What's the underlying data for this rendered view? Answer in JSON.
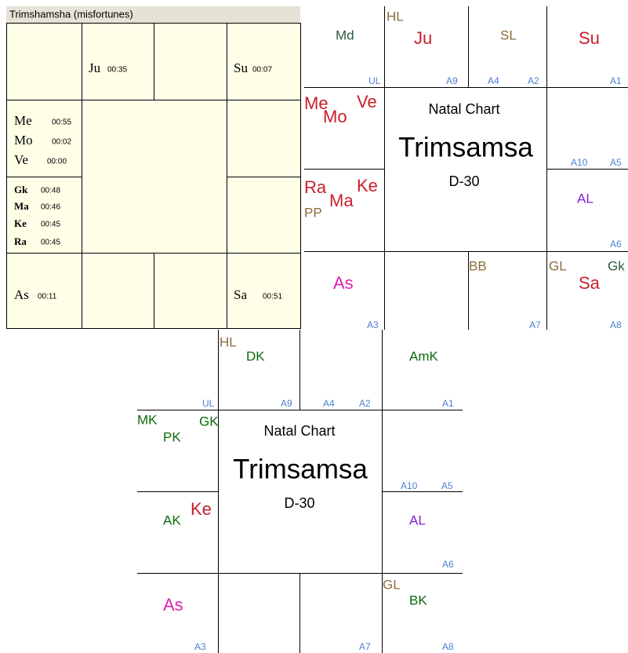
{
  "table_chart": {
    "title": "Trimshamsha  (misfortunes)",
    "entries": [
      {
        "planet": "Ju",
        "time": "00:35"
      },
      {
        "planet": "Su",
        "time": "00:07"
      },
      {
        "planet": "Me",
        "time": "00:55"
      },
      {
        "planet": "Mo",
        "time": "00:02"
      },
      {
        "planet": "Ve",
        "time": "00:00"
      },
      {
        "planet": "Gk",
        "time": "00:48"
      },
      {
        "planet": "Ma",
        "time": "00:46"
      },
      {
        "planet": "Ke",
        "time": "00:45"
      },
      {
        "planet": "Ra",
        "time": "00:45"
      },
      {
        "planet": "As",
        "time": "00:11"
      },
      {
        "planet": "Sa",
        "time": "00:51"
      }
    ]
  },
  "charts": [
    {
      "center": {
        "line1": "Natal Chart",
        "line2": "Trimsamsa",
        "line3": "D-30"
      },
      "labels": [
        "Md",
        "UL",
        "HL",
        "Ju",
        "A9",
        "SL",
        "A4",
        "A2",
        "Su",
        "A1",
        "Me",
        "Mo",
        "Ve",
        "A10",
        "A5",
        "Ra",
        "Ma",
        "Ke",
        "PP",
        "AL",
        "A6",
        "As",
        "A3",
        "BB",
        "A7",
        "GL",
        "Sa",
        "Gk",
        "A8"
      ]
    },
    {
      "center": {
        "line1": "Natal Chart",
        "line2": "Trimsamsa",
        "line3": "D-30"
      },
      "labels": [
        "UL",
        "HL",
        "DK",
        "A9",
        "A4",
        "A2",
        "AmK",
        "A1",
        "MK",
        "PK",
        "GK",
        "A10",
        "A5",
        "AK",
        "Ke",
        "AL",
        "A6",
        "As",
        "A3",
        "A7",
        "GL",
        "BK",
        "A8"
      ]
    }
  ]
}
